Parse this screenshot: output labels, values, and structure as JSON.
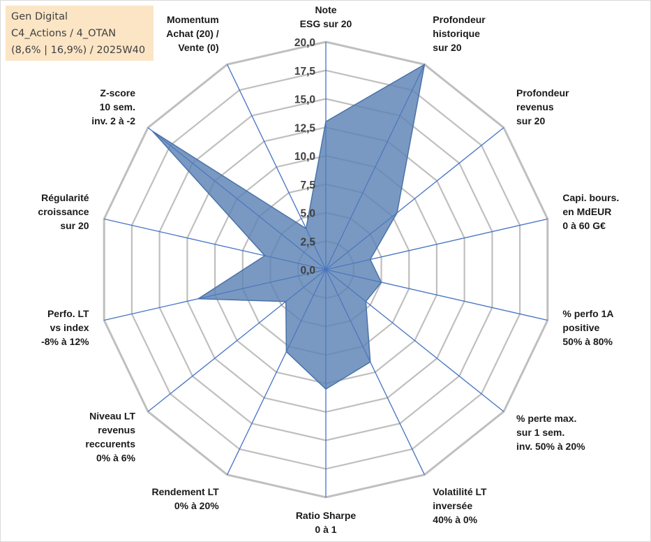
{
  "info": {
    "line1": "Gen Digital",
    "line2": "C4_Actions / 4_OTAN",
    "line3": "(8,6% | 16,9%) / 2025W40"
  },
  "colors": {
    "grid": "#bfbfbf",
    "spoke": "#4472c4",
    "fill": "#5b82b5",
    "fill_stroke": "#4a72a8",
    "info_bg": "#fbe5c5"
  },
  "chart_data": {
    "type": "radar",
    "title": "",
    "rlim": [
      0,
      20
    ],
    "tick_values": [
      0,
      2.5,
      5,
      7.5,
      10,
      12.5,
      15,
      17.5,
      20
    ],
    "tick_labels": [
      "0,0",
      "2,5",
      "5,0",
      "7,5",
      "10,0",
      "12,5",
      "15,0",
      "17,5",
      "20,0"
    ],
    "grid": true,
    "axes": [
      {
        "label": [
          "Note",
          "ESG sur 20"
        ],
        "value": 13.0
      },
      {
        "label": [
          "Profondeur",
          "historique",
          "sur 20"
        ],
        "value": 20.0
      },
      {
        "label": [
          "Profondeur",
          "revenus",
          "sur 20"
        ],
        "value": 8.0
      },
      {
        "label": [
          "Capi. bours.",
          "en MdEUR",
          "0 à 60 G€"
        ],
        "value": 4.0
      },
      {
        "label": [
          "% perfo 1A",
          "positive",
          "50% à 80%"
        ],
        "value": 5.0
      },
      {
        "label": [
          "% perte max.",
          "sur 1 sem.",
          "inv. 50% à 20%"
        ],
        "value": 4.5
      },
      {
        "label": [
          "Volatilité LT",
          "inversée",
          "40% à 0%"
        ],
        "value": 9.0
      },
      {
        "label": [
          "Ratio Sharpe",
          "0 à 1"
        ],
        "value": 10.5
      },
      {
        "label": [
          "Rendement LT",
          "0% à 20%"
        ],
        "value": 8.0
      },
      {
        "label": [
          "Niveau LT",
          "revenus",
          "reccurents",
          "0% à 6%"
        ],
        "value": 4.5
      },
      {
        "label": [
          "Perfo. LT",
          "vs index",
          "-8% à 12%"
        ],
        "value": 11.5
      },
      {
        "label": [
          "Régularité",
          "croissance",
          "sur 20"
        ],
        "value": 5.5
      },
      {
        "label": [
          "Z-score",
          "10 sem.",
          "inv. 2 à -2"
        ],
        "value": 19.5
      },
      {
        "label": [
          "Momentum",
          "Achat (20) /",
          "Vente (0)"
        ],
        "value": 4.0
      }
    ]
  }
}
